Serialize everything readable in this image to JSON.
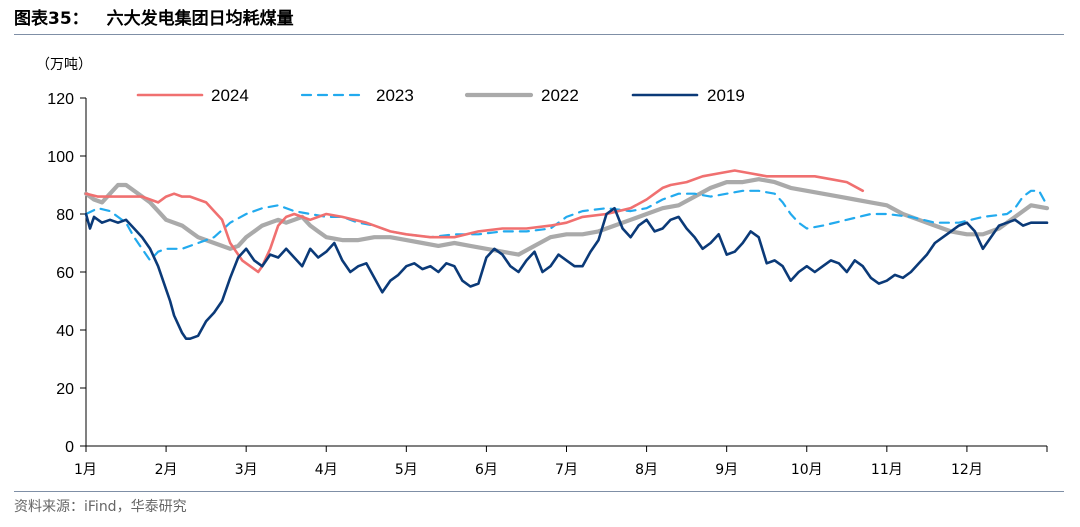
{
  "header": {
    "figure_label": "图表35：",
    "title": "六大发电集团日均耗煤量"
  },
  "footer": {
    "source": "资料来源：iFind，华泰研究"
  },
  "colors": {
    "2024": "#f07070",
    "2023": "#22aaee",
    "2022": "#aaaaaa",
    "2019": "#0b3a78",
    "rule": "#7f8fa6"
  },
  "chart_data": {
    "type": "line",
    "title": "六大发电集团日均耗煤量",
    "unit_label": "（万吨）",
    "ylabel": "万吨",
    "xlabel": "",
    "ylim": [
      0,
      120
    ],
    "yticks": [
      0,
      20,
      40,
      60,
      80,
      100,
      120
    ],
    "x_range": [
      0,
      12
    ],
    "months": [
      "1月",
      "2月",
      "3月",
      "4月",
      "5月",
      "6月",
      "7月",
      "8月",
      "9月",
      "10月",
      "11月",
      "12月"
    ],
    "grid": false,
    "legend_position": "top",
    "series": [
      {
        "name": "2024",
        "color": "#f07070",
        "dash": "solid",
        "x": [
          0.0,
          0.15,
          0.3,
          0.5,
          0.7,
          0.9,
          1.0,
          1.1,
          1.2,
          1.3,
          1.4,
          1.5,
          1.6,
          1.7,
          1.8,
          1.9,
          1.95,
          2.0,
          2.05,
          2.1,
          2.15,
          2.2,
          2.3,
          2.4,
          2.5,
          2.6,
          2.7,
          2.8,
          2.9,
          3.0,
          3.2,
          3.5,
          3.8,
          4.0,
          4.3,
          4.6,
          4.9,
          5.2,
          5.5,
          5.8,
          6.0,
          6.2,
          6.5,
          6.8,
          7.0,
          7.1,
          7.2,
          7.3,
          7.5,
          7.7,
          7.9,
          8.1,
          8.3,
          8.5,
          8.7,
          8.9,
          9.1,
          9.3,
          9.5,
          9.7
        ],
        "y": [
          87,
          86,
          86,
          86,
          86,
          84,
          86,
          87,
          86,
          86,
          85,
          84,
          81,
          78,
          70,
          66,
          64,
          63,
          62,
          61,
          60,
          62,
          68,
          76,
          79,
          80,
          79,
          78,
          79,
          80,
          79,
          77,
          74,
          73,
          72,
          72,
          74,
          75,
          75,
          76,
          77,
          79,
          80,
          82,
          85,
          87,
          89,
          90,
          91,
          93,
          94,
          95,
          94,
          93,
          93,
          93,
          93,
          92,
          91,
          88
        ]
      },
      {
        "name": "2023",
        "color": "#22aaee",
        "dash": "dashed",
        "x": [
          0.0,
          0.15,
          0.3,
          0.5,
          0.6,
          0.7,
          0.8,
          0.9,
          1.0,
          1.2,
          1.4,
          1.6,
          1.8,
          2.0,
          2.2,
          2.4,
          2.6,
          2.8,
          3.0,
          3.2,
          3.4,
          3.6,
          3.8,
          4.0,
          4.3,
          4.6,
          4.9,
          5.2,
          5.5,
          5.8,
          6.0,
          6.2,
          6.5,
          6.8,
          7.0,
          7.2,
          7.4,
          7.6,
          7.8,
          8.0,
          8.2,
          8.4,
          8.6,
          8.7,
          8.8,
          8.9,
          9.0,
          9.2,
          9.5,
          9.8,
          10.0,
          10.3,
          10.6,
          10.9,
          11.2,
          11.5,
          11.6,
          11.7,
          11.8,
          11.9,
          12.0
        ],
        "y": [
          80,
          82,
          81,
          77,
          72,
          68,
          64,
          67,
          68,
          68,
          70,
          72,
          77,
          80,
          82,
          83,
          81,
          80,
          79,
          79,
          77,
          76,
          74,
          73,
          72,
          73,
          73,
          74,
          74,
          75,
          79,
          81,
          82,
          81,
          82,
          85,
          87,
          87,
          86,
          87,
          88,
          88,
          87,
          84,
          80,
          77,
          75,
          76,
          78,
          80,
          80,
          79,
          77,
          77,
          79,
          80,
          82,
          86,
          88,
          88,
          83
        ]
      },
      {
        "name": "2022",
        "color": "#aaaaaa",
        "dash": "solid",
        "x": [
          0.0,
          0.1,
          0.2,
          0.3,
          0.4,
          0.5,
          0.6,
          0.7,
          0.8,
          0.9,
          1.0,
          1.2,
          1.3,
          1.4,
          1.5,
          1.6,
          1.7,
          1.8,
          1.9,
          2.0,
          2.1,
          2.2,
          2.3,
          2.4,
          2.5,
          2.6,
          2.7,
          2.8,
          2.9,
          3.0,
          3.2,
          3.4,
          3.6,
          3.8,
          4.0,
          4.2,
          4.4,
          4.6,
          4.8,
          5.0,
          5.2,
          5.4,
          5.6,
          5.8,
          6.0,
          6.2,
          6.4,
          6.6,
          6.8,
          7.0,
          7.2,
          7.4,
          7.6,
          7.8,
          8.0,
          8.2,
          8.4,
          8.6,
          8.8,
          9.0,
          9.2,
          9.4,
          9.6,
          9.8,
          10.0,
          10.2,
          10.4,
          10.6,
          10.8,
          11.0,
          11.2,
          11.4,
          11.6,
          11.8,
          12.0
        ],
        "y": [
          87,
          85,
          84,
          87,
          90,
          90,
          88,
          86,
          84,
          81,
          78,
          76,
          74,
          72,
          71,
          70,
          69,
          68,
          69,
          72,
          74,
          76,
          77,
          78,
          77,
          78,
          79,
          76,
          74,
          72,
          71,
          71,
          72,
          72,
          71,
          70,
          69,
          70,
          69,
          68,
          67,
          66,
          69,
          72,
          73,
          73,
          74,
          76,
          78,
          80,
          82,
          83,
          86,
          89,
          91,
          91,
          92,
          91,
          89,
          88,
          87,
          86,
          85,
          84,
          83,
          80,
          78,
          76,
          74,
          73,
          73,
          75,
          79,
          83,
          82
        ]
      },
      {
        "name": "2019",
        "color": "#0b3a78",
        "dash": "solid",
        "x": [
          0.0,
          0.05,
          0.1,
          0.15,
          0.2,
          0.3,
          0.4,
          0.5,
          0.6,
          0.7,
          0.8,
          0.9,
          1.0,
          1.05,
          1.1,
          1.15,
          1.2,
          1.25,
          1.3,
          1.4,
          1.5,
          1.6,
          1.7,
          1.8,
          1.9,
          2.0,
          2.1,
          2.2,
          2.3,
          2.4,
          2.5,
          2.6,
          2.7,
          2.8,
          2.9,
          3.0,
          3.1,
          3.2,
          3.3,
          3.4,
          3.5,
          3.6,
          3.7,
          3.8,
          3.9,
          4.0,
          4.1,
          4.2,
          4.3,
          4.4,
          4.5,
          4.6,
          4.7,
          4.8,
          4.9,
          5.0,
          5.1,
          5.2,
          5.3,
          5.4,
          5.5,
          5.6,
          5.7,
          5.8,
          5.9,
          6.0,
          6.1,
          6.2,
          6.3,
          6.4,
          6.5,
          6.6,
          6.7,
          6.8,
          6.9,
          7.0,
          7.1,
          7.2,
          7.3,
          7.4,
          7.5,
          7.6,
          7.7,
          7.8,
          7.9,
          8.0,
          8.1,
          8.2,
          8.3,
          8.4,
          8.5,
          8.6,
          8.7,
          8.8,
          8.9,
          9.0,
          9.1,
          9.2,
          9.3,
          9.4,
          9.5,
          9.6,
          9.7,
          9.8,
          9.9,
          10.0,
          10.1,
          10.2,
          10.3,
          10.4,
          10.5,
          10.6,
          10.7,
          10.8,
          10.9,
          11.0,
          11.1,
          11.2,
          11.3,
          11.4,
          11.5,
          11.6,
          11.7,
          11.8,
          11.9,
          12.0
        ],
        "y": [
          80,
          75,
          79,
          78,
          77,
          78,
          77,
          78,
          75,
          72,
          68,
          62,
          54,
          50,
          45,
          42,
          39,
          37,
          37,
          38,
          43,
          46,
          50,
          58,
          65,
          68,
          64,
          62,
          66,
          65,
          68,
          65,
          62,
          68,
          65,
          67,
          70,
          64,
          60,
          62,
          63,
          58,
          53,
          57,
          59,
          62,
          63,
          61,
          62,
          60,
          63,
          62,
          57,
          55,
          56,
          65,
          68,
          66,
          62,
          60,
          64,
          67,
          60,
          62,
          66,
          64,
          62,
          62,
          67,
          71,
          80,
          82,
          75,
          72,
          76,
          78,
          74,
          75,
          78,
          79,
          75,
          72,
          68,
          70,
          73,
          66,
          67,
          70,
          74,
          72,
          63,
          64,
          62,
          57,
          60,
          62,
          60,
          62,
          64,
          63,
          60,
          64,
          62,
          58,
          56,
          57,
          59,
          58,
          60,
          63,
          66,
          70,
          72,
          74,
          76,
          77,
          74,
          68,
          72,
          76,
          77,
          78,
          76,
          77,
          77,
          77
        ]
      }
    ]
  }
}
